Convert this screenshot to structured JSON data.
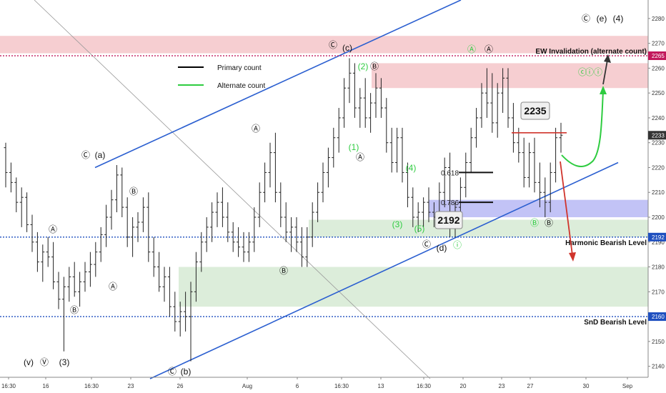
{
  "chart_data": {
    "type": "candlestick",
    "title": "",
    "xlabel": "",
    "ylabel": "",
    "x_ticks": [
      "16:30",
      "16",
      "16:30",
      "23",
      "26",
      "Aug",
      "6",
      "16:30",
      "13",
      "16:30",
      "20",
      "23",
      "27",
      "30",
      "Sep"
    ],
    "y_ticks": [
      2140,
      2150,
      2160,
      2170,
      2180,
      2190,
      2200,
      2210,
      2220,
      2230,
      2240,
      2250,
      2260,
      2270,
      2280
    ],
    "ylim": [
      2135,
      2286
    ],
    "price_badges": [
      {
        "label": "2265",
        "value": 2265,
        "color": "#c2185b"
      },
      {
        "label": "2233",
        "value": 2233,
        "color": "#333333"
      },
      {
        "label": "2192",
        "value": 2192,
        "color": "#1e4fbf"
      },
      {
        "label": "2160",
        "value": 2160,
        "color": "#1e4fbf"
      }
    ],
    "levels": [
      {
        "name": "EW Invalidation (alternate count)",
        "value": 2265,
        "style": "dotted",
        "color": "#c2185b"
      },
      {
        "name": "Harmonic Bearish Level",
        "value": 2192,
        "style": "dotted",
        "color": "#1e4fbf"
      },
      {
        "name": "SnD Bearish Level",
        "value": 2160,
        "style": "dotted",
        "color": "#1e4fbf"
      }
    ],
    "zones": [
      {
        "kind": "supply",
        "from": 2266,
        "to": 2273,
        "color": "#f4c6c9"
      },
      {
        "kind": "supply",
        "from": 2252,
        "to": 2262,
        "color": "#f4c6c9"
      },
      {
        "kind": "demand",
        "from": 2192,
        "to": 2199,
        "color": "#d6ead3"
      },
      {
        "kind": "demand",
        "from": 2164,
        "to": 2180,
        "color": "#d6ead3"
      },
      {
        "kind": "retracement",
        "from": 2200,
        "to": 2207,
        "color": "#b7b9f5"
      }
    ],
    "fib_levels": [
      {
        "label": "0.618",
        "value": 2218
      },
      {
        "label": "0.786",
        "value": 2206
      }
    ],
    "callouts": [
      {
        "label": "2235",
        "value": 2235
      },
      {
        "label": "2192",
        "value": 2192
      }
    ],
    "legend": [
      {
        "label": "Primary count",
        "color": "#000000"
      },
      {
        "label": "Alternate count",
        "color": "#2ecc40"
      }
    ],
    "wave_labels": [
      "Ⓒ",
      "(a)",
      "(b)",
      "(c)",
      "(d)",
      "(e)",
      "(4)",
      "(3)",
      "(v)",
      "Ⓥ",
      "Ⓐ",
      "Ⓑ",
      "(1)",
      "(2)",
      "(3)",
      "(4)",
      "(5)",
      "ⓘ",
      "ⓒ",
      "ⓘⓘ"
    ],
    "candles": [
      [
        2228,
        2230,
        2212,
        2218
      ],
      [
        2218,
        2222,
        2210,
        2214
      ],
      [
        2214,
        2216,
        2202,
        2206
      ],
      [
        2206,
        2212,
        2196,
        2208
      ],
      [
        2208,
        2210,
        2194,
        2197
      ],
      [
        2197,
        2201,
        2186,
        2190
      ],
      [
        2190,
        2194,
        2178,
        2182
      ],
      [
        2182,
        2189,
        2174,
        2186
      ],
      [
        2186,
        2192,
        2180,
        2184
      ],
      [
        2184,
        2190,
        2171,
        2174
      ],
      [
        2174,
        2178,
        2163,
        2167
      ],
      [
        2167,
        2176,
        2146,
        2172
      ],
      [
        2172,
        2180,
        2166,
        2176
      ],
      [
        2176,
        2182,
        2168,
        2170
      ],
      [
        2170,
        2178,
        2164,
        2174
      ],
      [
        2174,
        2182,
        2170,
        2178
      ],
      [
        2178,
        2186,
        2172,
        2181
      ],
      [
        2181,
        2190,
        2176,
        2186
      ],
      [
        2186,
        2196,
        2182,
        2193
      ],
      [
        2193,
        2205,
        2188,
        2200
      ],
      [
        2200,
        2211,
        2195,
        2207
      ],
      [
        2207,
        2221,
        2202,
        2217
      ],
      [
        2217,
        2220,
        2200,
        2204
      ],
      [
        2204,
        2208,
        2188,
        2192
      ],
      [
        2192,
        2200,
        2184,
        2196
      ],
      [
        2196,
        2202,
        2190,
        2198
      ],
      [
        2198,
        2208,
        2194,
        2204
      ],
      [
        2204,
        2210,
        2182,
        2186
      ],
      [
        2186,
        2192,
        2176,
        2180
      ],
      [
        2180,
        2186,
        2170,
        2172
      ],
      [
        2172,
        2180,
        2166,
        2176
      ],
      [
        2176,
        2180,
        2160,
        2164
      ],
      [
        2164,
        2170,
        2154,
        2158
      ],
      [
        2158,
        2166,
        2152,
        2162
      ],
      [
        2162,
        2170,
        2154,
        2160
      ],
      [
        2160,
        2174,
        2142,
        2170
      ],
      [
        2170,
        2186,
        2166,
        2182
      ],
      [
        2182,
        2194,
        2178,
        2190
      ],
      [
        2190,
        2200,
        2186,
        2196
      ],
      [
        2196,
        2206,
        2190,
        2202
      ],
      [
        2202,
        2210,
        2196,
        2206
      ],
      [
        2206,
        2212,
        2196,
        2200
      ],
      [
        2200,
        2206,
        2190,
        2194
      ],
      [
        2194,
        2198,
        2186,
        2190
      ],
      [
        2190,
        2196,
        2184,
        2188
      ],
      [
        2188,
        2194,
        2182,
        2186
      ],
      [
        2186,
        2194,
        2182,
        2190
      ],
      [
        2190,
        2204,
        2186,
        2200
      ],
      [
        2200,
        2214,
        2196,
        2210
      ],
      [
        2210,
        2222,
        2206,
        2218
      ],
      [
        2218,
        2230,
        2212,
        2226
      ],
      [
        2226,
        2234,
        2206,
        2210
      ],
      [
        2210,
        2214,
        2196,
        2200
      ],
      [
        2200,
        2206,
        2190,
        2194
      ],
      [
        2194,
        2200,
        2186,
        2196
      ],
      [
        2196,
        2200,
        2186,
        2190
      ],
      [
        2190,
        2196,
        2180,
        2184
      ],
      [
        2184,
        2196,
        2180,
        2192
      ],
      [
        2192,
        2206,
        2188,
        2202
      ],
      [
        2202,
        2214,
        2198,
        2210
      ],
      [
        2210,
        2222,
        2206,
        2218
      ],
      [
        2218,
        2228,
        2212,
        2224
      ],
      [
        2224,
        2236,
        2220,
        2232
      ],
      [
        2232,
        2244,
        2226,
        2240
      ],
      [
        2240,
        2256,
        2236,
        2252
      ],
      [
        2252,
        2264,
        2246,
        2258
      ],
      [
        2258,
        2262,
        2240,
        2244
      ],
      [
        2244,
        2252,
        2236,
        2248
      ],
      [
        2248,
        2256,
        2236,
        2240
      ],
      [
        2240,
        2250,
        2234,
        2246
      ],
      [
        2246,
        2258,
        2240,
        2252
      ],
      [
        2252,
        2256,
        2240,
        2244
      ],
      [
        2244,
        2248,
        2226,
        2230
      ],
      [
        2230,
        2236,
        2218,
        2222
      ],
      [
        2222,
        2236,
        2218,
        2232
      ],
      [
        2232,
        2236,
        2214,
        2218
      ],
      [
        2218,
        2222,
        2204,
        2208
      ],
      [
        2208,
        2212,
        2196,
        2200
      ],
      [
        2200,
        2206,
        2194,
        2202
      ],
      [
        2202,
        2208,
        2196,
        2206
      ],
      [
        2206,
        2212,
        2198,
        2202
      ],
      [
        2202,
        2206,
        2196,
        2200
      ],
      [
        2200,
        2214,
        2196,
        2210
      ],
      [
        2210,
        2224,
        2204,
        2220
      ],
      [
        2220,
        2226,
        2192,
        2196
      ],
      [
        2196,
        2206,
        2192,
        2204
      ],
      [
        2204,
        2216,
        2200,
        2212
      ],
      [
        2212,
        2226,
        2208,
        2222
      ],
      [
        2222,
        2236,
        2218,
        2232
      ],
      [
        2232,
        2244,
        2228,
        2240
      ],
      [
        2240,
        2254,
        2236,
        2250
      ],
      [
        2250,
        2260,
        2240,
        2246
      ],
      [
        2246,
        2258,
        2234,
        2238
      ],
      [
        2238,
        2254,
        2232,
        2250
      ],
      [
        2250,
        2260,
        2242,
        2256
      ],
      [
        2256,
        2260,
        2236,
        2240
      ],
      [
        2240,
        2246,
        2226,
        2230
      ],
      [
        2230,
        2236,
        2222,
        2226
      ],
      [
        2226,
        2232,
        2212,
        2216
      ],
      [
        2216,
        2230,
        2212,
        2226
      ],
      [
        2226,
        2232,
        2210,
        2214
      ],
      [
        2214,
        2222,
        2204,
        2210
      ],
      [
        2210,
        2216,
        2200,
        2206
      ],
      [
        2206,
        2222,
        2202,
        2218
      ],
      [
        2218,
        2236,
        2214,
        2232
      ],
      [
        2232,
        2238,
        2226,
        2233
      ]
    ]
  }
}
